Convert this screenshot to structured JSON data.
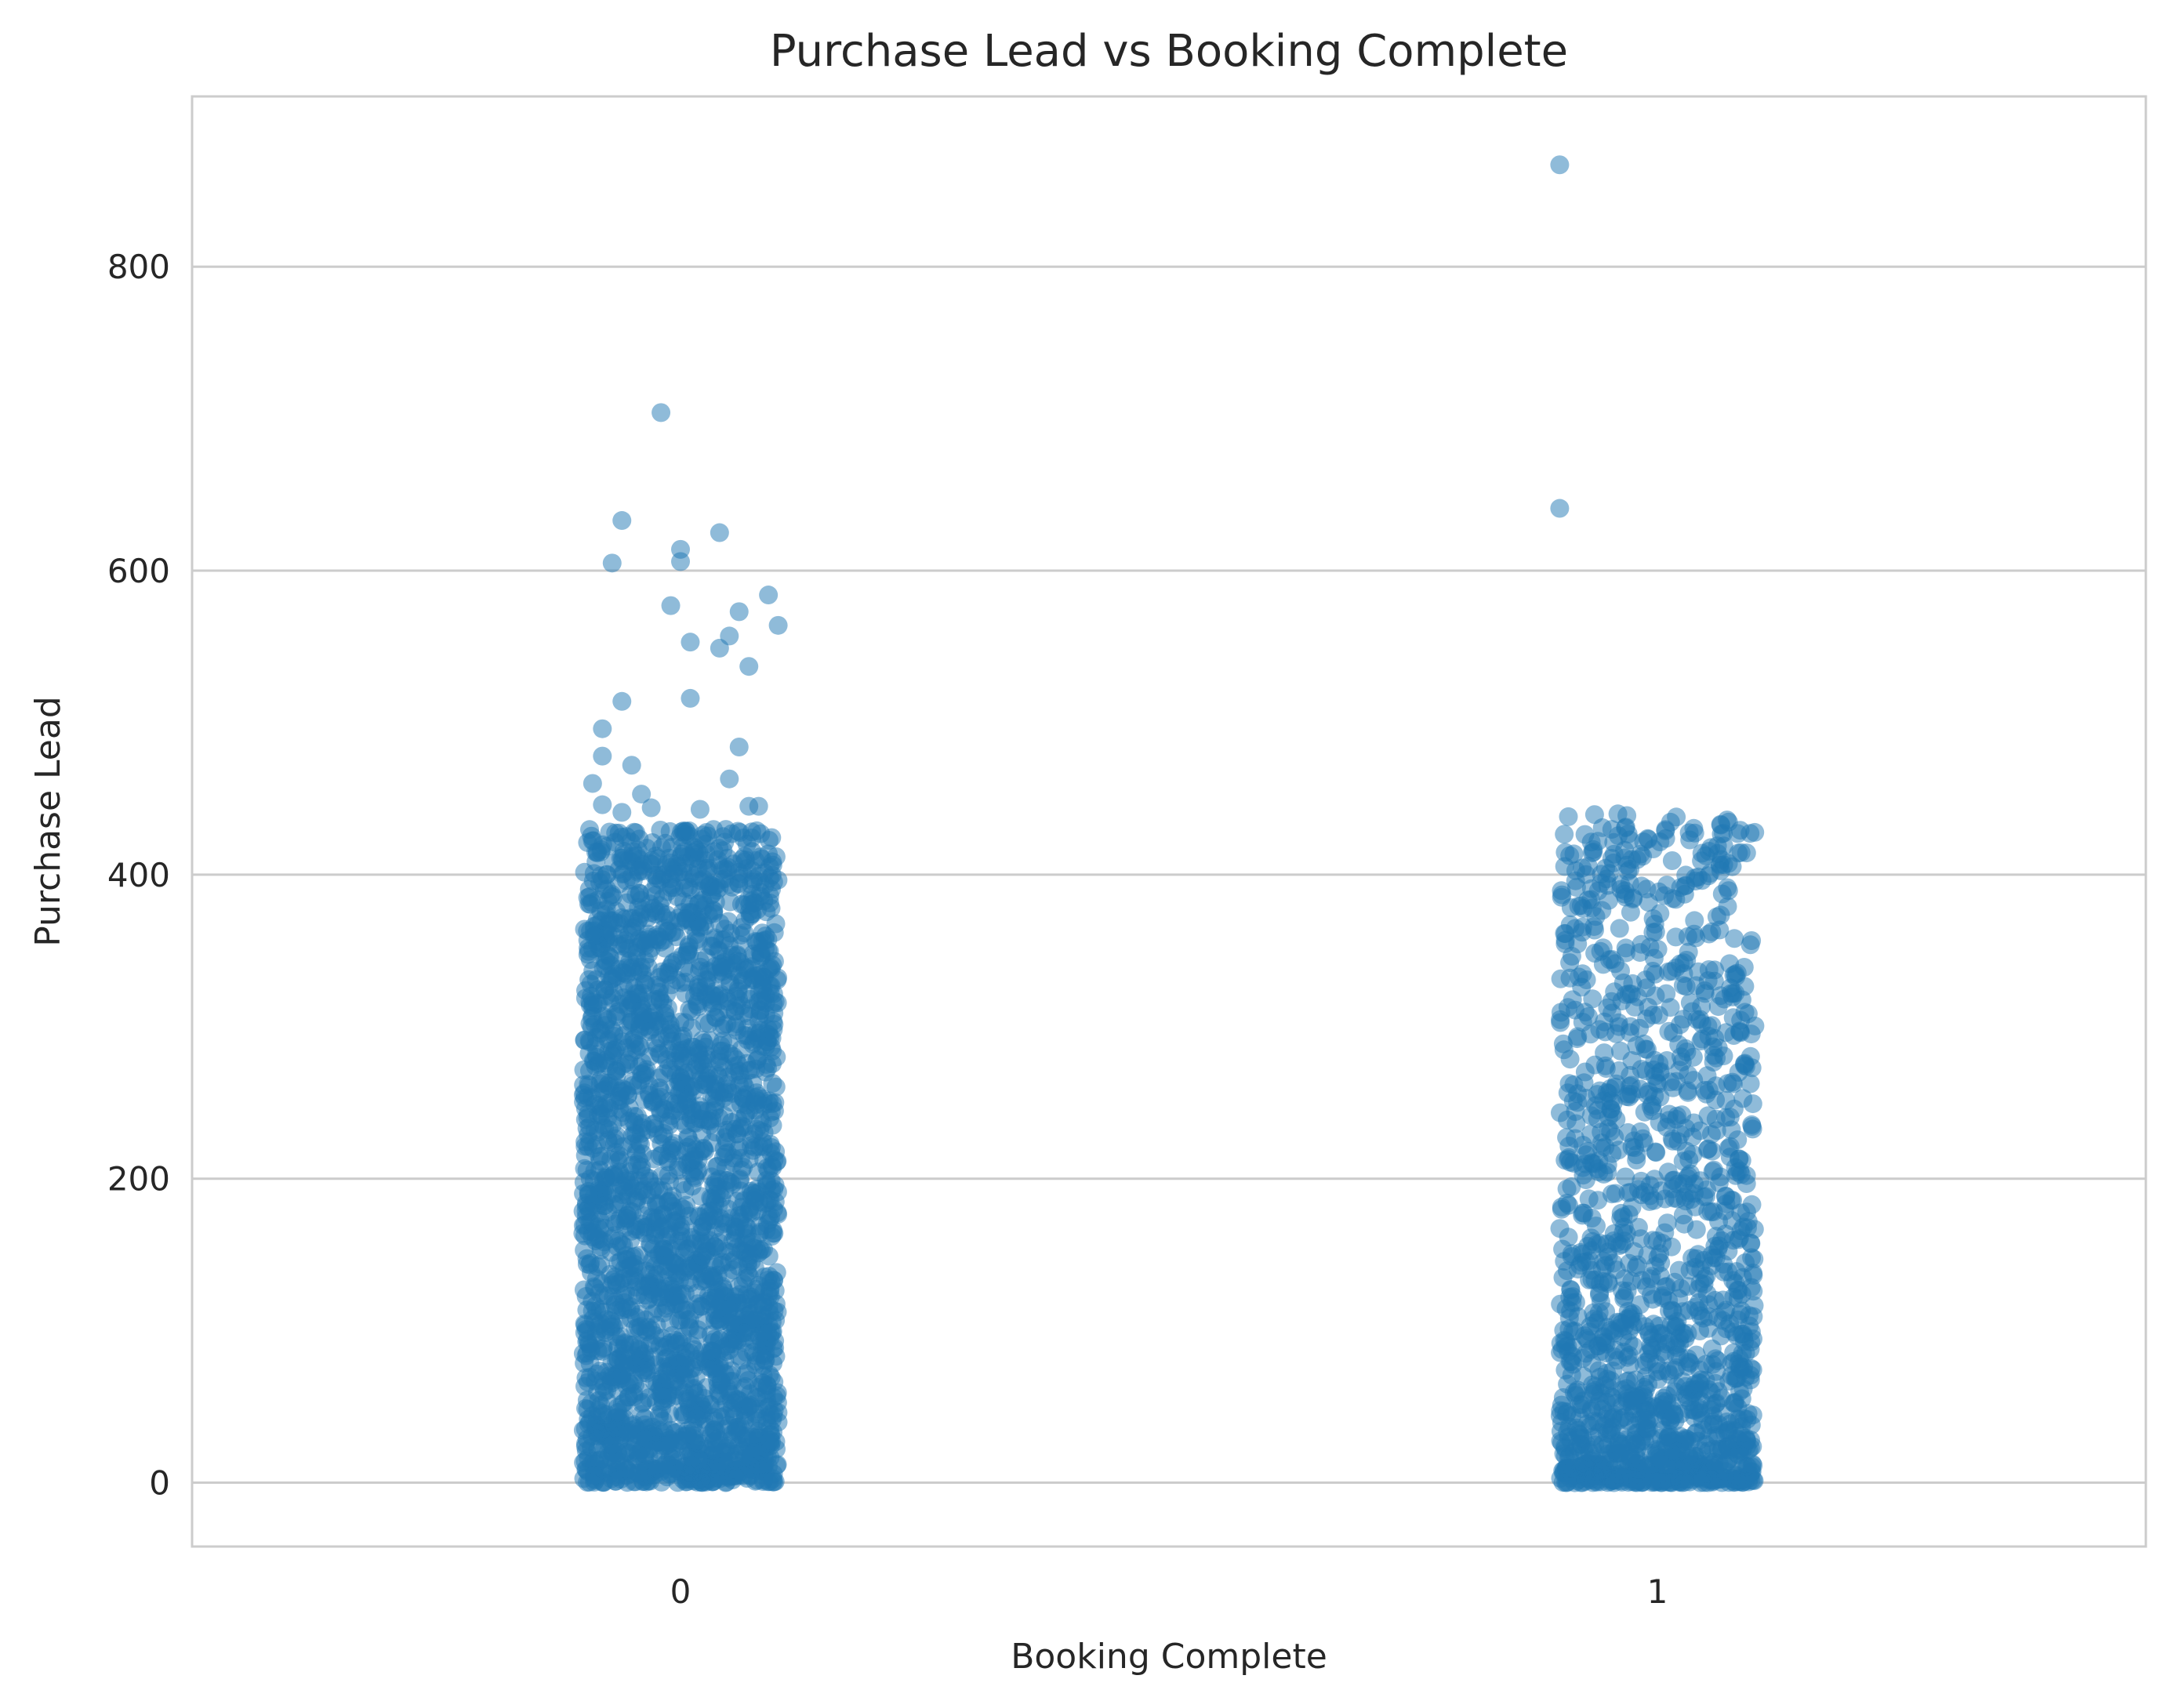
{
  "chart_data": {
    "type": "scatter",
    "subtype": "strip",
    "title": "Purchase Lead vs Booking Complete",
    "xlabel": "Booking Complete",
    "ylabel": "Purchase Lead",
    "categories": [
      "0",
      "1"
    ],
    "ylim": [
      -42,
      912
    ],
    "yticks": [
      0,
      200,
      400,
      600,
      800
    ],
    "ytick_labels": [
      "0",
      "200",
      "400",
      "600",
      "800"
    ],
    "grid": "horizontal",
    "legend": "none",
    "point_color": "#1f77b4",
    "point_opacity": 0.5,
    "series": [
      {
        "category": "0",
        "dense_range": [
          0,
          430
        ],
        "approx_count": 42000,
        "outliers": [
          {
            "x": -0.02,
            "y": 704
          },
          {
            "x": -0.06,
            "y": 633
          },
          {
            "x": -0.07,
            "y": 605
          },
          {
            "x": 0.0,
            "y": 606
          },
          {
            "x": 0.0,
            "y": 614
          },
          {
            "x": 0.04,
            "y": 625
          },
          {
            "x": 0.09,
            "y": 584
          },
          {
            "x": -0.01,
            "y": 577
          },
          {
            "x": 0.06,
            "y": 573
          },
          {
            "x": 0.1,
            "y": 564
          },
          {
            "x": 0.01,
            "y": 553
          },
          {
            "x": 0.05,
            "y": 557
          },
          {
            "x": 0.04,
            "y": 549
          },
          {
            "x": 0.07,
            "y": 537
          },
          {
            "x": 0.01,
            "y": 516
          },
          {
            "x": -0.06,
            "y": 514
          },
          {
            "x": -0.08,
            "y": 496
          },
          {
            "x": 0.06,
            "y": 484
          },
          {
            "x": -0.08,
            "y": 478
          },
          {
            "x": -0.05,
            "y": 472
          },
          {
            "x": 0.05,
            "y": 463
          },
          {
            "x": -0.09,
            "y": 460
          },
          {
            "x": -0.04,
            "y": 453
          },
          {
            "x": -0.08,
            "y": 446
          },
          {
            "x": -0.03,
            "y": 444
          },
          {
            "x": 0.07,
            "y": 445
          },
          {
            "x": 0.08,
            "y": 445
          },
          {
            "x": 0.02,
            "y": 443
          },
          {
            "x": -0.06,
            "y": 441
          }
        ]
      },
      {
        "category": "1",
        "dense_range": [
          0,
          440
        ],
        "approx_count": 7500,
        "outliers": [
          {
            "x": -0.1,
            "y": 867
          },
          {
            "x": -0.1,
            "y": 641
          }
        ]
      }
    ]
  }
}
